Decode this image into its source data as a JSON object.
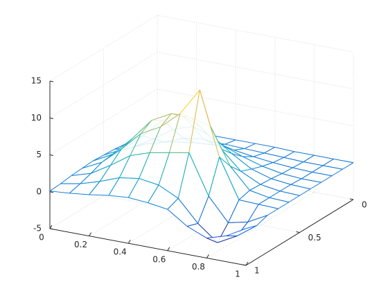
{
  "chart_data": {
    "type": "mesh3d",
    "x": [
      0,
      0.1,
      0.2,
      0.3,
      0.4,
      0.5,
      0.6,
      0.7,
      0.8,
      0.9,
      1
    ],
    "y": [
      0,
      0.1,
      0.2,
      0.3,
      0.4,
      0.5,
      0.6,
      0.7,
      0.8,
      0.9,
      1
    ],
    "z": [
      [
        0,
        0,
        0.1,
        0.1,
        0.1,
        0.1,
        0.1,
        0,
        0,
        0,
        0
      ],
      [
        0,
        0.1,
        0.2,
        0.3,
        0.4,
        0.3,
        0.2,
        0.1,
        0,
        0,
        0
      ],
      [
        0.1,
        0.3,
        0.6,
        1,
        1.2,
        1,
        0.6,
        0.3,
        0.1,
        0,
        0
      ],
      [
        0.2,
        0.7,
        1.5,
        2.5,
        2.9,
        2.5,
        1.5,
        0.7,
        0.2,
        0,
        0
      ],
      [
        0.4,
        1.2,
        2.8,
        4.6,
        5.5,
        4.6,
        2.8,
        1.2,
        0.4,
        0.1,
        0
      ],
      [
        0.5,
        1.8,
        4.1,
        6.7,
        7.9,
        6.7,
        4.3,
        1.8,
        0.5,
        0.1,
        0
      ],
      [
        0.6,
        2,
        4.6,
        7.6,
        9,
        9,
        8.3,
        3.4,
        0.6,
        0.1,
        0
      ],
      [
        0.5,
        1.8,
        4.1,
        6.7,
        8.1,
        10.4,
        14.1,
        5.5,
        0.2,
        0.1,
        0
      ],
      [
        0.4,
        1.2,
        2.8,
        4.6,
        5.5,
        6,
        6.5,
        1.1,
        -2,
        -1.4,
        0
      ],
      [
        0.2,
        0.7,
        1.5,
        2.5,
        2.9,
        2.5,
        1.2,
        -1.7,
        -3.8,
        -2.4,
        -0.5
      ],
      [
        0.1,
        0.3,
        0.6,
        1,
        1.2,
        1,
        0.6,
        -1.2,
        -2.3,
        -1.5,
        0
      ]
    ],
    "colormap": [
      "#352a87",
      "#0f5cdd",
      "#1481d6",
      "#06a4ca",
      "#2eb7a4",
      "#87bf77",
      "#d1bb59",
      "#fec832",
      "#f9fb0e"
    ],
    "xlim": [
      0,
      1
    ],
    "xticks": [
      0,
      0.2,
      0.4,
      0.6,
      0.8,
      1
    ],
    "ylim": [
      0,
      1
    ],
    "yticks": [
      0,
      0.5,
      1
    ],
    "zlim": [
      -5,
      15
    ],
    "zticks": [
      -5,
      0,
      5,
      10,
      15
    ],
    "grid": true
  }
}
